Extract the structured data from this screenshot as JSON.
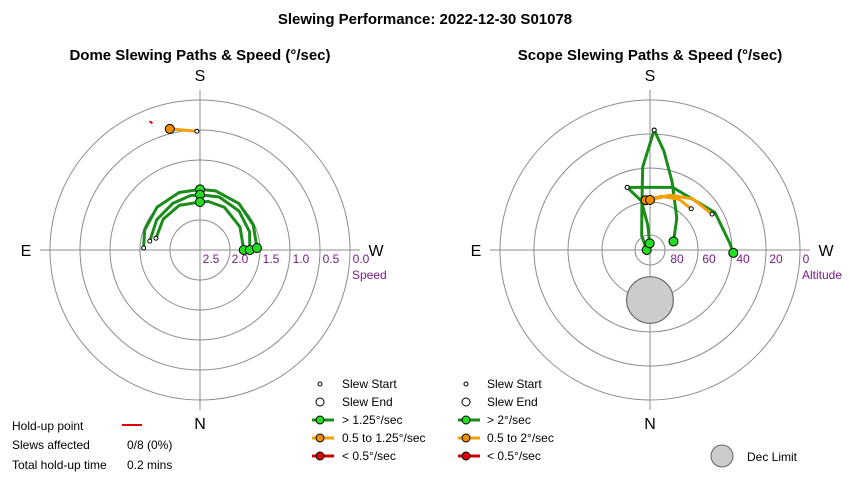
{
  "title": "Slewing Performance: 2022-12-30 S01078",
  "colors": {
    "fast": "#1a8c1a",
    "fast_marker": "#22dd22",
    "medium": "#f5a000",
    "medium_marker": "#f08c00",
    "slow": "#cc0000",
    "slow_marker": "#dd0000",
    "ring": "#8c8c8c",
    "tick": "#7a1a8a",
    "dec_limit": "#cccccc"
  },
  "compass": {
    "south": "S",
    "north": "N",
    "east": "E",
    "west": "W"
  },
  "dome": {
    "subtitle": "Dome Slewing Paths & Speed (°/sec)",
    "radial_label": "Speed",
    "radial_ticks": [
      "2.5",
      "2.0",
      "1.5",
      "1.0",
      "0.5",
      "0.0"
    ],
    "legend": {
      "start": "Slew Start",
      "end": "Slew End",
      "fast": "> 1.25°/sec",
      "medium": "0.5 to 1.25°/sec",
      "slow": "< 0.5°/sec"
    }
  },
  "scope": {
    "subtitle": "Scope Slewing Paths & Speed (°/sec)",
    "radial_label": "Altitude",
    "radial_ticks": [
      "80",
      "60",
      "40",
      "20",
      "0"
    ],
    "legend": {
      "start": "Slew Start",
      "end": "Slew End",
      "fast": "> 2°/sec",
      "medium": "0.5 to 2°/sec",
      "slow": "< 0.5°/sec"
    },
    "dec_limit_label": "Dec Limit"
  },
  "stats": {
    "holdup_label": "Hold-up point",
    "slews_label": "Slews affected",
    "slews_value": "0/8 (0%)",
    "total_label": "Total hold-up time",
    "total_value": "0.2 mins"
  },
  "chart_data": [
    {
      "type": "scatter",
      "title": "Dome Slewing Paths & Speed (°/sec)",
      "coordinate_system": "polar (azimuth, speed)",
      "radial_axis": {
        "label": "Speed",
        "range": [
          0.0,
          2.5
        ],
        "ticks": [
          2.5,
          2.0,
          1.5,
          1.0,
          0.5,
          0.0
        ],
        "center_value": 2.5
      },
      "azimuth_labels": {
        "top": "S",
        "bottom": "N",
        "left": "E",
        "right": "W"
      },
      "series": [
        {
          "name": "> 1.25°/sec",
          "paths": [
            {
              "points": [
                [
                  0,
                  1.7
                ],
                [
                  10,
                  1.68
                ],
                [
                  30,
                  1.68
                ],
                [
                  60,
                  1.73
                ],
                [
                  90,
                  1.77
                ]
              ]
            },
            {
              "points": [
                [
                  0,
                  1.58
                ],
                [
                  20,
                  1.56
                ],
                [
                  45,
                  1.58
                ],
                [
                  70,
                  1.62
                ],
                [
                  90,
                  1.67
                ]
              ]
            },
            {
              "points": [
                [
                  0,
                  1.49
                ],
                [
                  15,
                  1.48
                ],
                [
                  40,
                  1.49
                ],
                [
                  65,
                  1.52
                ],
                [
                  88,
                  1.55
                ]
              ]
            },
            {
              "points": [
                [
                  -88,
                  1.56
                ],
                [
                  -70,
                  1.52
                ],
                [
                  -45,
                  1.49
                ],
                [
                  -20,
                  1.48
                ],
                [
                  0,
                  1.49
                ]
              ]
            },
            {
              "points": [
                [
                  -80,
                  1.65
                ],
                [
                  -55,
                  1.62
                ],
                [
                  -30,
                  1.6
                ],
                [
                  -10,
                  1.58
                ],
                [
                  0,
                  1.58
                ]
              ]
            },
            {
              "points": [
                [
                  -75,
                  1.74
                ],
                [
                  -50,
                  1.7
                ],
                [
                  -25,
                  1.68
                ],
                [
                  0,
                  1.7
                ]
              ]
            }
          ]
        },
        {
          "name": "0.5 to 1.25°/sec",
          "paths": [
            {
              "points": [
                [
                  -1.5,
                  0.52
                ],
                [
                  -14,
                  0.42
                ]
              ]
            }
          ]
        },
        {
          "name": "< 0.5°/sec",
          "paths": []
        }
      ],
      "hold_up_points": [
        [
          -21,
          0.22
        ]
      ]
    },
    {
      "type": "scatter",
      "title": "Scope Slewing Paths & Speed (°/sec)",
      "coordinate_system": "polar (azimuth, altitude)",
      "radial_axis": {
        "label": "Altitude",
        "range": [
          0,
          90
        ],
        "ticks": [
          80,
          60,
          40,
          20,
          0
        ],
        "center_value": 90
      },
      "azimuth_labels": {
        "top": "S",
        "bottom": "N",
        "left": "E",
        "right": "W"
      },
      "series": [
        {
          "name": "> 2°/sec",
          "paths": [
            {
              "points": [
                [
                  2,
                  18
                ],
                [
                  8,
                  30
                ],
                [
                  18,
                  47
                ],
                [
                  40,
                  65
                ],
                [
                  70,
                  75
                ]
              ]
            },
            {
              "points": [
                [
                  2,
                  18
                ],
                [
                  -5,
                  40
                ],
                [
                  -10,
                  62
                ],
                [
                  -30,
                  80
                ],
                [
                  -90,
                  88
                ]
              ]
            },
            {
              "points": [
                [
                  -20,
                  50
                ],
                [
                  20,
                  50
                ],
                [
                  60,
                  45
                ],
                [
                  85,
                  42
                ],
                [
                  92,
                  40
                ]
              ]
            },
            {
              "points": [
                [
                  -20,
                  50
                ],
                [
                  -10,
                  60
                ],
                [
                  -5,
                  75
                ],
                [
                  -3,
                  86
                ]
              ]
            }
          ]
        },
        {
          "name": "0.5 to 2°/sec",
          "paths": [
            {
              "points": [
                [
                  45,
                  55
                ],
                [
                  30,
                  55
                ],
                [
                  12,
                  57
                ],
                [
                  -5,
                  60
                ]
              ]
            },
            {
              "points": [
                [
                  60,
                  47
                ],
                [
                  40,
                  50
                ],
                [
                  20,
                  55
                ],
                [
                  0,
                  60
                ]
              ]
            }
          ]
        },
        {
          "name": "< 0.5°/sec",
          "paths": []
        }
      ],
      "dec_limit": {
        "azimuth": 180,
        "altitude_center": 60,
        "radius_deg": 14
      }
    }
  ]
}
